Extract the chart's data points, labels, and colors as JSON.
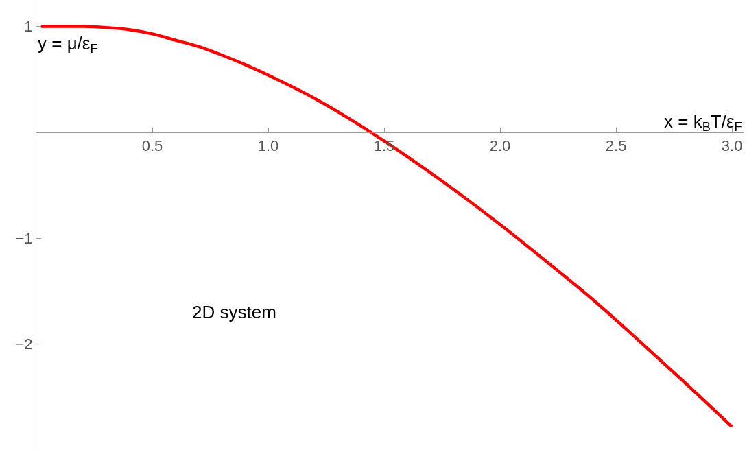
{
  "chart_data": {
    "type": "line",
    "xlabel": "x = k$_{B}$T/ε$_{F}$",
    "ylabel": "y = μ/ε$_{F}$",
    "annotations": [
      "2D system"
    ],
    "x": [
      0.02,
      0.1,
      0.2,
      0.3,
      0.4,
      0.5,
      0.6,
      0.7,
      0.8,
      0.9,
      1.0,
      1.2,
      1.4,
      1.6,
      1.8,
      2.0,
      2.2,
      2.4,
      2.6,
      2.8,
      3.0
    ],
    "series": [
      {
        "color": "#ff0000",
        "values": [
          1.0,
          1.0,
          1.0,
          0.99,
          0.97,
          0.93,
          0.87,
          0.81,
          0.73,
          0.64,
          0.54,
          0.32,
          0.06,
          -0.23,
          -0.54,
          -0.87,
          -1.22,
          -1.58,
          -1.97,
          -2.37,
          -2.78
        ]
      }
    ],
    "xlim": [
      0,
      3.05
    ],
    "ylim": [
      -3.0,
      1.25
    ],
    "xticks": [
      0.5,
      {
        "value": 1,
        "label": "1.0"
      },
      1.5,
      {
        "value": 2,
        "label": "2.0"
      },
      2.5,
      {
        "value": 3,
        "label": "3.0"
      }
    ],
    "yticks": [
      1,
      {
        "value": -1,
        "label": "−1"
      },
      {
        "value": -2,
        "label": "−2"
      }
    ],
    "grid": false,
    "marker": "none",
    "line_style": "solid"
  }
}
